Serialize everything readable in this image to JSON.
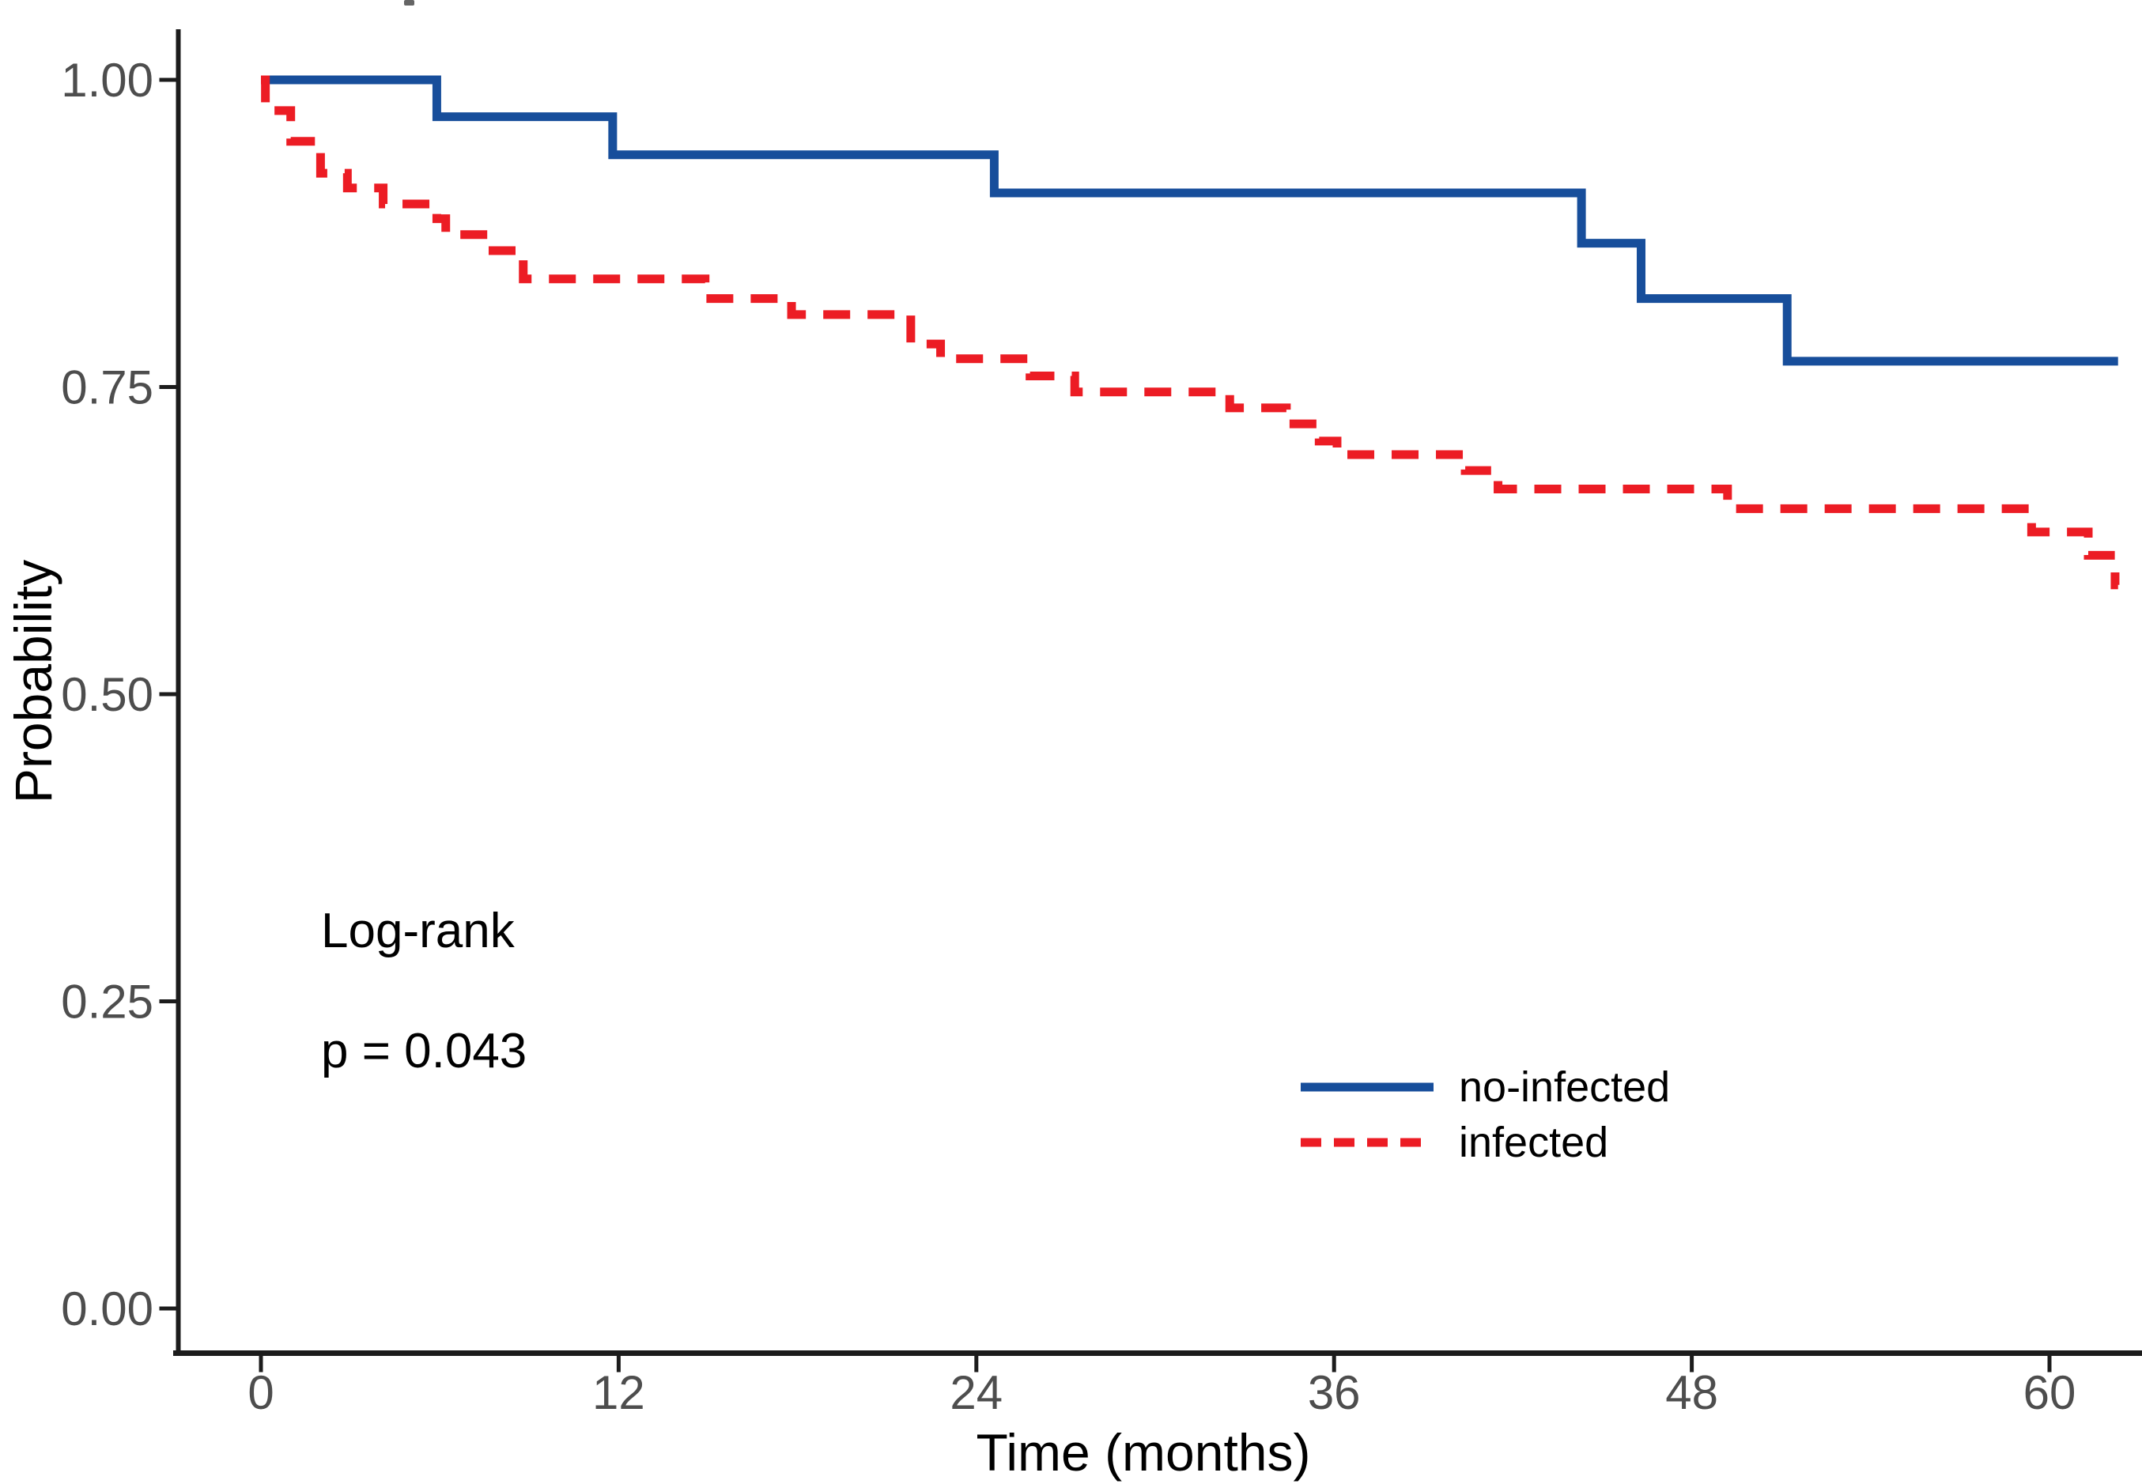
{
  "colors": {
    "no_infected_line": "#174E9B",
    "infected_line": "#EC1C24",
    "axis_line": "#1c1c1c",
    "tick_label": "#4d4d4d",
    "text": "#000000",
    "background": "#ffffff"
  },
  "annotations": {
    "logrank": "Log-rank",
    "pvalue": "p = 0.043"
  },
  "chart_data": {
    "type": "line",
    "subtype": "kaplan-meier-step",
    "title": "",
    "xlabel": "Time (months)",
    "ylabel": "Probability",
    "xlim": [
      0,
      63
    ],
    "ylim": [
      0.0,
      1.0
    ],
    "grid": "off",
    "legend_position": "inside-bottom-right",
    "x_ticks": [
      {
        "value": 0,
        "label": "0"
      },
      {
        "value": 12,
        "label": "12"
      },
      {
        "value": 24,
        "label": "24"
      },
      {
        "value": 36,
        "label": "36"
      },
      {
        "value": 48,
        "label": "48"
      },
      {
        "value": 60,
        "label": "60"
      }
    ],
    "y_ticks": [
      {
        "value": 0.0,
        "label": "0.00"
      },
      {
        "value": 0.25,
        "label": "0.25"
      },
      {
        "value": 0.5,
        "label": "0.50"
      },
      {
        "value": 0.75,
        "label": "0.75"
      },
      {
        "value": 1.0,
        "label": "1.00"
      }
    ],
    "series": [
      {
        "name": "no-infected",
        "style": "solid",
        "color": "#174E9B",
        "end_time": 62.3,
        "steps": [
          [
            0.0,
            1.0
          ],
          [
            5.9,
            0.97
          ],
          [
            11.8,
            0.939
          ],
          [
            24.6,
            0.908
          ],
          [
            44.3,
            0.867
          ],
          [
            46.3,
            0.822
          ],
          [
            51.2,
            0.771
          ]
        ]
      },
      {
        "name": "infected",
        "style": "dashed",
        "color": "#EC1C24",
        "end_time": 62.3,
        "steps": [
          [
            0.0,
            1.0
          ],
          [
            0.15,
            0.975
          ],
          [
            1.0,
            0.95
          ],
          [
            2.0,
            0.924
          ],
          [
            2.9,
            0.912
          ],
          [
            4.1,
            0.899
          ],
          [
            5.9,
            0.887
          ],
          [
            6.2,
            0.874
          ],
          [
            7.6,
            0.861
          ],
          [
            8.8,
            0.838
          ],
          [
            14.9,
            0.822
          ],
          [
            17.8,
            0.809
          ],
          [
            21.8,
            0.785
          ],
          [
            22.8,
            0.773
          ],
          [
            25.8,
            0.759
          ],
          [
            27.3,
            0.746
          ],
          [
            32.5,
            0.733
          ],
          [
            34.4,
            0.72
          ],
          [
            35.5,
            0.706
          ],
          [
            36.1,
            0.695
          ],
          [
            40.4,
            0.682
          ],
          [
            41.5,
            0.667
          ],
          [
            49.2,
            0.651
          ],
          [
            59.4,
            0.632
          ],
          [
            61.3,
            0.613
          ],
          [
            62.2,
            0.589
          ]
        ]
      }
    ],
    "legend": {
      "entries": [
        {
          "label": "no-infected",
          "style": "solid",
          "color": "#174E9B"
        },
        {
          "label": "infected",
          "style": "dashed",
          "color": "#EC1C24"
        }
      ]
    }
  }
}
